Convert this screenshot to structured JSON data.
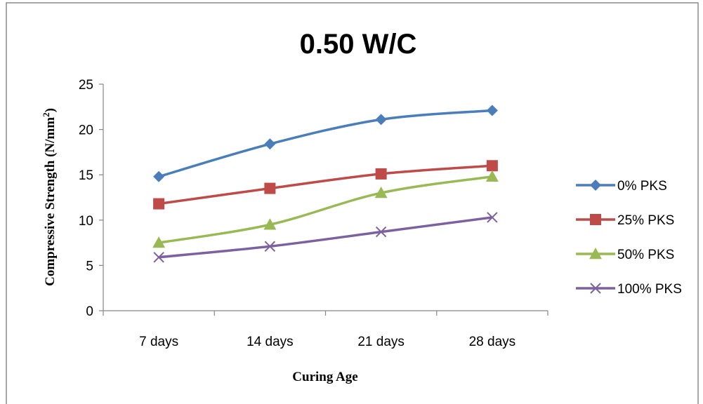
{
  "chart_data": {
    "type": "line",
    "title": "0.50 W/C",
    "xlabel": "Curing Age",
    "ylabel": "Compressive Strength (N/mm²)",
    "ylabel_main": "Compressive Strength (N/mm",
    "ylabel_sup": "2",
    "ylabel_end": ")",
    "categories": [
      "7 days",
      "14 days",
      "21 days",
      "28 days"
    ],
    "ylim": [
      0,
      25
    ],
    "yticks": [
      "0",
      "5",
      "10",
      "15",
      "20",
      "25"
    ],
    "grid": false,
    "legend": "right",
    "series": [
      {
        "name": "0% PKS",
        "values": [
          14.8,
          18.4,
          21.1,
          22.1
        ],
        "color": "#4a7ebb",
        "marker": "diamond"
      },
      {
        "name": "25% PKS",
        "values": [
          11.8,
          13.5,
          15.1,
          16.0
        ],
        "color": "#be4b48",
        "marker": "square"
      },
      {
        "name": "50% PKS",
        "values": [
          7.5,
          9.5,
          13.0,
          14.8
        ],
        "color": "#98b954",
        "marker": "triangle"
      },
      {
        "name": "100% PKS",
        "values": [
          5.9,
          7.1,
          8.7,
          10.3
        ],
        "color": "#7d60a0",
        "marker": "x"
      }
    ]
  }
}
